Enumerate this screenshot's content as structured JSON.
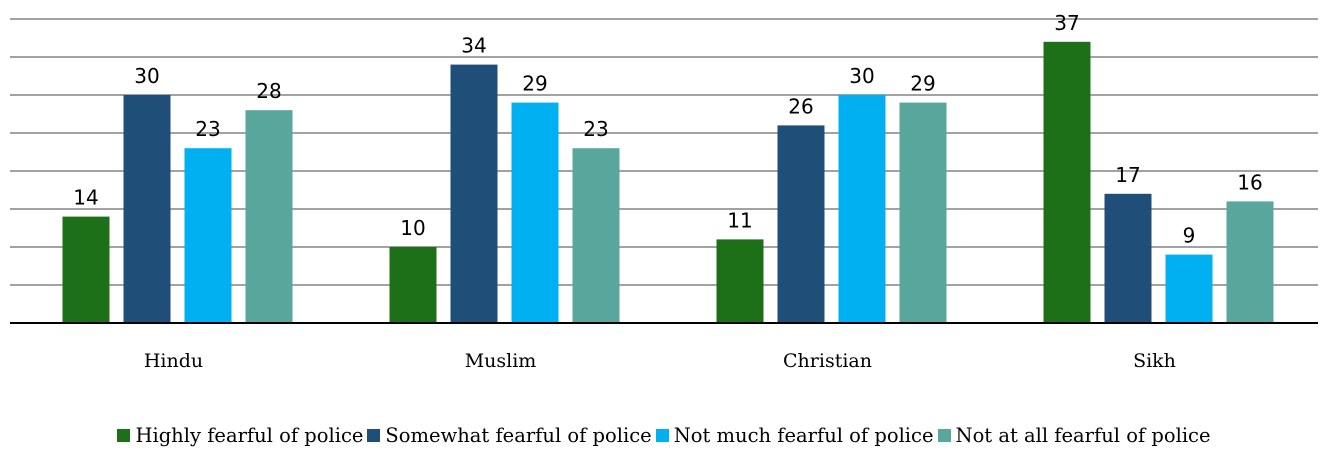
{
  "chart_data": {
    "type": "bar",
    "categories": [
      "Hindu",
      "Muslim",
      "Christian",
      "Sikh"
    ],
    "series": [
      {
        "name": "Highly fearful of police",
        "color": "#1e7018",
        "values": [
          14,
          10,
          11,
          37
        ]
      },
      {
        "name": "Somewhat fearful of police",
        "color": "#1f4e79",
        "values": [
          30,
          34,
          26,
          17
        ]
      },
      {
        "name": "Not much fearful of police",
        "color": "#00b0f0",
        "values": [
          23,
          29,
          30,
          9
        ]
      },
      {
        "name": "Not at all fearful of police",
        "color": "#58a69c",
        "values": [
          28,
          23,
          29,
          16
        ]
      }
    ],
    "ylim": [
      0,
      40
    ],
    "grid": true,
    "legend_position": "bottom"
  }
}
